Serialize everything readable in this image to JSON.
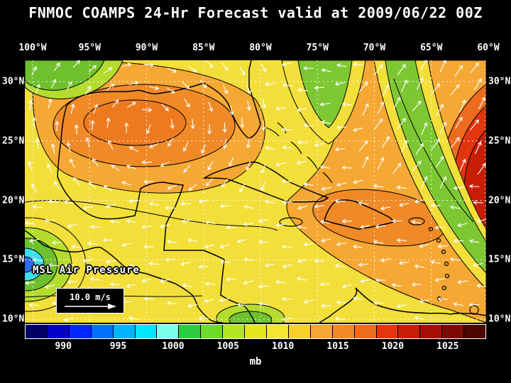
{
  "title": "FNMOC COAMPS 24-Hr Forecast valid at 2009/06/22 00Z",
  "map": {
    "label": "MSL Air Pressure",
    "wind_legend": {
      "speed_label": "10.0 m/s"
    },
    "axes": {
      "lon_labels": [
        "100°W",
        "95°W",
        "90°W",
        "85°W",
        "80°W",
        "75°W",
        "70°W",
        "65°W",
        "60°W"
      ],
      "lat_labels": [
        "30°N",
        "25°N",
        "20°N",
        "15°N",
        "10°N"
      ]
    }
  },
  "colorbar": {
    "units": "mb",
    "tick_labels": [
      "990",
      "995",
      "1000",
      "1005",
      "1010",
      "1015",
      "1020",
      "1025"
    ],
    "tick_values": [
      990,
      995,
      1000,
      1005,
      1010,
      1015,
      1020,
      1025
    ],
    "segment_colors": [
      "#000066",
      "#0000C8",
      "#0028FF",
      "#0070FF",
      "#00B4FF",
      "#00E6FF",
      "#7DFFEE",
      "#2ECC40",
      "#6EDB2A",
      "#B4E622",
      "#E6E61E",
      "#F5E632",
      "#F5D02E",
      "#F5A833",
      "#F08A26",
      "#ED6B1F",
      "#E3350E",
      "#C81E06",
      "#A31004",
      "#7A0A02",
      "#4D0600"
    ]
  },
  "colors": {
    "background": "#000000",
    "text": "#ffffff",
    "wind_arrows": "#ffffff",
    "coastlines": "#000000",
    "gridlines": "#ffffff"
  },
  "chart_data": {
    "type": "heatmap",
    "title": "FNMOC COAMPS 24-Hr Forecast valid at 2009/06/22 00Z",
    "model": "FNMOC COAMPS",
    "forecast_hour": "24-Hr",
    "valid_time": "2009/06/22 00Z",
    "variable": "MSL Air Pressure",
    "units": "mb",
    "x_axis": {
      "tick_labels": [
        "100°W",
        "95°W",
        "90°W",
        "85°W",
        "80°W",
        "75°W",
        "70°W",
        "65°W",
        "60°W"
      ],
      "range_deg_west": [
        100,
        60
      ]
    },
    "y_axis": {
      "tick_labels": [
        "30°N",
        "25°N",
        "20°N",
        "15°N",
        "10°N"
      ],
      "range_deg_north": [
        10,
        30
      ]
    },
    "colorbar_ticks_mb": [
      990,
      995,
      1000,
      1005,
      1010,
      1015,
      1020,
      1025
    ],
    "overlays": [
      {
        "type": "wind-vectors",
        "reference": "10.0 m/s",
        "color": "#ffffff"
      },
      {
        "type": "coastlines",
        "color": "#000000"
      },
      {
        "type": "lat-lon-grid",
        "style": "white-dotted"
      }
    ],
    "approx_features": [
      {
        "region": "Gulf of Mexico",
        "value_mb": 1015,
        "note": "orange high-pressure core with clockwise winds"
      },
      {
        "region": "western Atlantic near 62W 25N",
        "value_mb": 1021,
        "note": "red pressure maximum, strong NNE wind vectors"
      },
      {
        "region": "eastern Pacific at left edge near 15N",
        "value_mb": 1000,
        "note": "closed low, blue/cyan core ringed by green"
      },
      {
        "region": "Caribbean and tropics",
        "value_mb": 1011,
        "note": "broad yellow field with westward trade winds"
      },
      {
        "region": "top middle near 78W and top corners",
        "value_mb": 1005,
        "note": "green lower-pressure wedges"
      }
    ]
  }
}
